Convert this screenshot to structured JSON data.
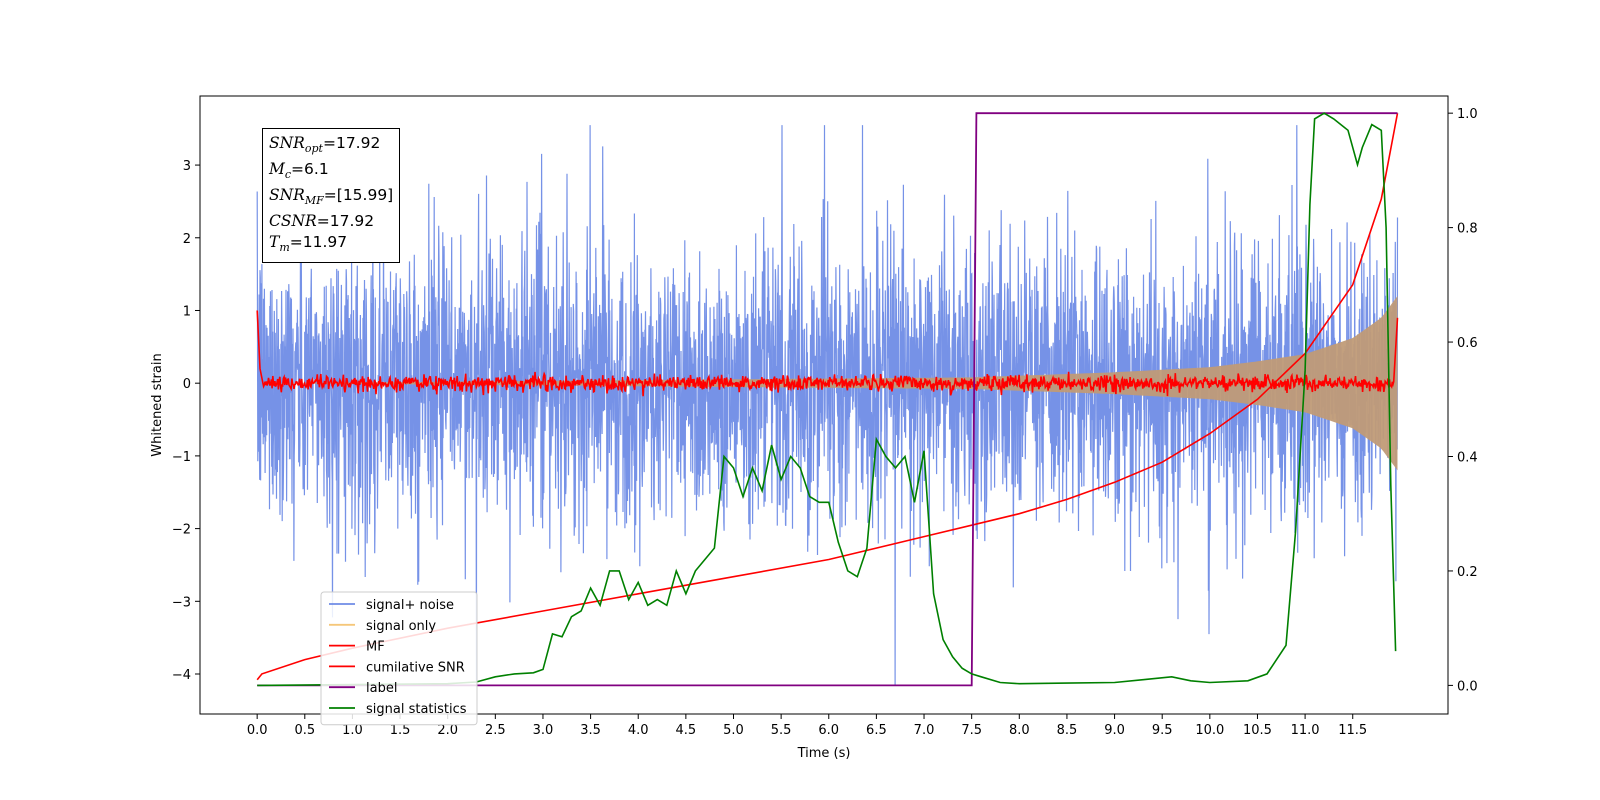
{
  "chart_data": {
    "type": "line",
    "xlabel": "Time (s)",
    "ylabel": "Whitened strain",
    "xlim": [
      -0.6,
      12.5
    ],
    "ylim": [
      -4.55,
      3.95
    ],
    "y2lim": [
      -0.05,
      1.03
    ],
    "grid": false,
    "legend_placement": "lower-left",
    "x_ticks": [
      "0.0",
      "0.5",
      "1.0",
      "1.5",
      "2.0",
      "2.5",
      "3.0",
      "3.5",
      "4.0",
      "4.5",
      "5.0",
      "5.5",
      "6.0",
      "6.5",
      "7.0",
      "7.5",
      "8.0",
      "8.5",
      "9.0",
      "9.5",
      "10.0",
      "10.5",
      "11.0",
      "11.5"
    ],
    "y_ticks": [
      "3",
      "2",
      "1",
      "0",
      "−1",
      "−2",
      "−3",
      "−4"
    ],
    "y2_ticks": [
      "1.0",
      "0.8",
      "0.6",
      "0.4",
      "0.2",
      "0.0"
    ],
    "legend": [
      "signal+ noise",
      "signal only",
      "MF",
      "cumilative SNR",
      "label",
      "signal statistics"
    ],
    "colors": {
      "signal_noise": "#6f8ce6",
      "signal_only": "#f5c77a",
      "signal_only_overlap": "#c09b77",
      "mf": "#ff0000",
      "cumulative_snr": "#ff0000",
      "label": "#800080",
      "signal_statistics": "#008000"
    },
    "annotation": {
      "snr_opt": "17.92",
      "mc": "6.1",
      "snr_mf": "[15.99]",
      "csnr": "17.92",
      "tm": "11.97"
    },
    "series": [
      {
        "name": "signal+ noise",
        "axis": "left",
        "description_values": {
          "t_start": 0.0,
          "t_end": 11.97,
          "typical_max": 2.0,
          "typical_min": -2.0,
          "peak_max": 3.55,
          "peak_min": -4.15
        }
      },
      {
        "name": "signal only",
        "axis": "left",
        "envelope": {
          "t": [
            0.0,
            7.5,
            9.0,
            10.0,
            10.5,
            11.0,
            11.5,
            11.8,
            11.97
          ],
          "amp": [
            0.0,
            0.08,
            0.15,
            0.22,
            0.3,
            0.4,
            0.62,
            0.9,
            1.2
          ]
        }
      },
      {
        "name": "MF",
        "axis": "left",
        "values": {
          "t_start": 0.0,
          "start_value": 1.0,
          "baseline": 0.0,
          "noise_amp": 0.12,
          "end_value": 0.9
        }
      },
      {
        "name": "cumilative SNR",
        "axis": "right",
        "x": [
          0.0,
          0.05,
          0.5,
          1.0,
          2.0,
          3.0,
          4.0,
          5.0,
          6.0,
          7.0,
          7.5,
          8.0,
          8.5,
          9.0,
          9.5,
          10.0,
          10.5,
          11.0,
          11.5,
          11.8,
          11.97
        ],
        "y": [
          0.01,
          0.02,
          0.045,
          0.065,
          0.1,
          0.13,
          0.16,
          0.19,
          0.22,
          0.26,
          0.28,
          0.3,
          0.325,
          0.355,
          0.39,
          0.44,
          0.5,
          0.58,
          0.7,
          0.85,
          1.0
        ]
      },
      {
        "name": "label",
        "axis": "right",
        "x": [
          0.0,
          7.5,
          7.55,
          11.97
        ],
        "y": [
          0.0,
          0.0,
          1.0,
          1.0
        ]
      },
      {
        "name": "signal statistics",
        "axis": "right",
        "x": [
          0.0,
          2.0,
          2.3,
          2.5,
          2.7,
          2.9,
          3.0,
          3.1,
          3.2,
          3.3,
          3.4,
          3.5,
          3.6,
          3.7,
          3.8,
          3.9,
          4.0,
          4.1,
          4.2,
          4.3,
          4.4,
          4.5,
          4.6,
          4.7,
          4.8,
          4.9,
          5.0,
          5.1,
          5.2,
          5.3,
          5.4,
          5.5,
          5.6,
          5.7,
          5.8,
          5.9,
          6.0,
          6.1,
          6.2,
          6.3,
          6.4,
          6.5,
          6.6,
          6.7,
          6.8,
          6.9,
          7.0,
          7.1,
          7.2,
          7.3,
          7.4,
          7.5,
          7.6,
          7.8,
          8.0,
          8.5,
          9.0,
          9.3,
          9.6,
          9.8,
          10.0,
          10.4,
          10.6,
          10.8,
          10.9,
          11.0,
          11.05,
          11.1,
          11.2,
          11.3,
          11.45,
          11.55,
          11.6,
          11.7,
          11.8,
          11.85,
          11.9,
          11.95
        ],
        "y": [
          0.0,
          0.003,
          0.006,
          0.015,
          0.02,
          0.022,
          0.028,
          0.09,
          0.085,
          0.12,
          0.13,
          0.17,
          0.14,
          0.2,
          0.2,
          0.15,
          0.18,
          0.14,
          0.15,
          0.14,
          0.2,
          0.16,
          0.2,
          0.22,
          0.24,
          0.4,
          0.38,
          0.33,
          0.38,
          0.34,
          0.42,
          0.36,
          0.4,
          0.38,
          0.33,
          0.32,
          0.32,
          0.25,
          0.2,
          0.19,
          0.24,
          0.43,
          0.4,
          0.38,
          0.4,
          0.32,
          0.41,
          0.16,
          0.08,
          0.05,
          0.03,
          0.02,
          0.015,
          0.005,
          0.003,
          0.004,
          0.005,
          0.01,
          0.015,
          0.008,
          0.005,
          0.008,
          0.02,
          0.07,
          0.27,
          0.55,
          0.84,
          0.99,
          1.0,
          0.99,
          0.97,
          0.91,
          0.94,
          0.98,
          0.97,
          0.8,
          0.35,
          0.06
        ]
      }
    ]
  }
}
